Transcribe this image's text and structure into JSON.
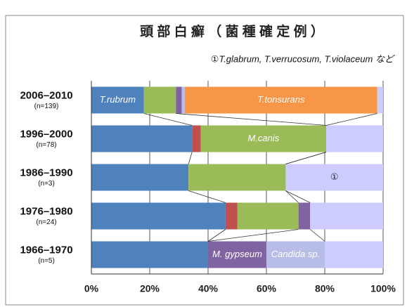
{
  "chart_data": {
    "type": "stacked_bar_horizontal",
    "title": "頭 部 白 癬 （ 菌 種 確 定 例 ）",
    "annotation": "①T.glabrum, T.verrucosum, T.violaceum など",
    "categories": [
      "2006–2010",
      "1996–2000",
      "1986–1990",
      "1976–1980",
      "1966–1970"
    ],
    "category_notes": [
      "(n=139)",
      "(n=78)",
      "(n=3)",
      "(n=24)",
      "(n=5)"
    ],
    "series": [
      {
        "name": "T.rubrum",
        "color": "#4f81bd",
        "values": [
          18,
          34.5,
          33.3,
          46,
          40
        ]
      },
      {
        "color": "#c0504d",
        "values": [
          0,
          3,
          0,
          4,
          0
        ]
      },
      {
        "name": "M.canis",
        "color": "#9bbb59",
        "values": [
          11,
          43,
          33.3,
          21,
          0
        ]
      },
      {
        "name": "M. gypseum",
        "color": "#8064a2",
        "values": [
          2,
          0,
          0,
          4,
          20
        ]
      },
      {
        "name": "Candida sp.",
        "color": "#b7bde6",
        "values": [
          1,
          0,
          0,
          0,
          20
        ]
      },
      {
        "name": "T.tonsurans",
        "color": "#f79646",
        "values": [
          66,
          0,
          0,
          0,
          0
        ]
      },
      {
        "name": "①",
        "color": "#ccccff",
        "values": [
          2,
          19.5,
          33.4,
          25,
          20
        ]
      }
    ],
    "xlim": [
      0,
      100
    ],
    "xticks": [
      {
        "value": 0,
        "label": "0%"
      },
      {
        "value": 20,
        "label": "20%"
      },
      {
        "value": 40,
        "label": "40%"
      },
      {
        "value": 60,
        "label": "60%"
      },
      {
        "value": 80,
        "label": "80%"
      },
      {
        "value": 100,
        "label": "100%"
      }
    ],
    "grid": true
  }
}
